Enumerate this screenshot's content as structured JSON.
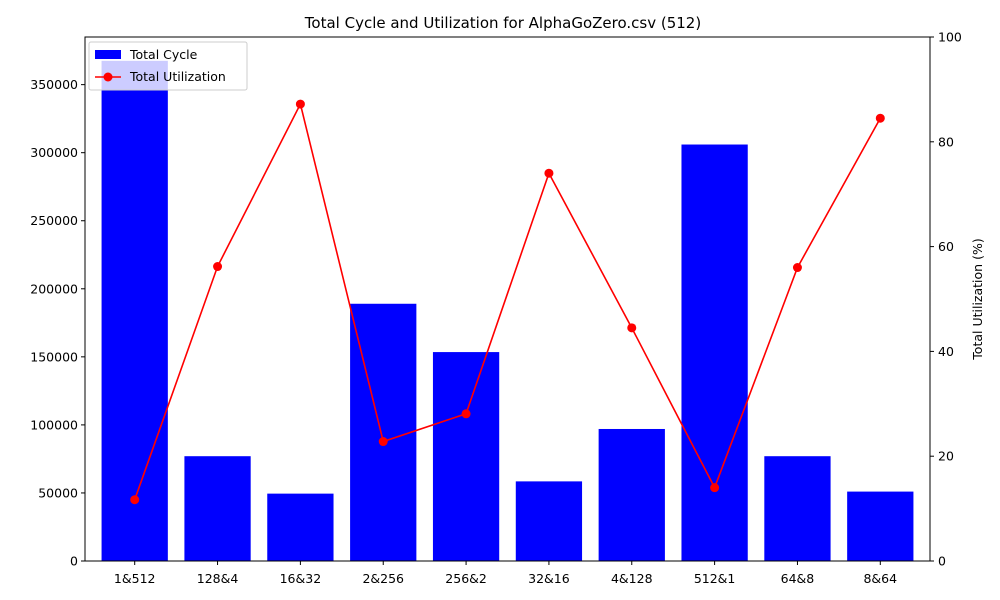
{
  "chart_data": {
    "type": "bar",
    "title": "Total Cycle and Utilization for AlphaGoZero.csv (512)",
    "xlabel": "",
    "categories": [
      "1&512",
      "128&4",
      "16&32",
      "2&256",
      "256&2",
      "32&16",
      "4&128",
      "512&1",
      "64&8",
      "8&64"
    ],
    "left_axis": {
      "label": "",
      "ylim": [
        0,
        385000
      ],
      "ticks": [
        0,
        50000,
        100000,
        150000,
        200000,
        250000,
        300000,
        350000
      ]
    },
    "right_axis": {
      "label": "Total Utilization (%)",
      "ylim": [
        0,
        100
      ],
      "ticks": [
        0,
        20,
        40,
        60,
        80,
        100
      ]
    },
    "series": [
      {
        "name": "Total Cycle",
        "kind": "bar",
        "axis": "left",
        "color": "#0000ff",
        "values": [
          367500,
          77000,
          49500,
          189000,
          153500,
          58500,
          97000,
          306000,
          77000,
          51000
        ]
      },
      {
        "name": "Total Utilization",
        "kind": "line",
        "axis": "right",
        "color": "#ff0000",
        "values": [
          11.7,
          56.2,
          87.2,
          22.8,
          28.1,
          74.0,
          44.5,
          14.0,
          56.0,
          84.5
        ]
      }
    ],
    "legend": {
      "placement": "top-left"
    },
    "grid": false
  }
}
